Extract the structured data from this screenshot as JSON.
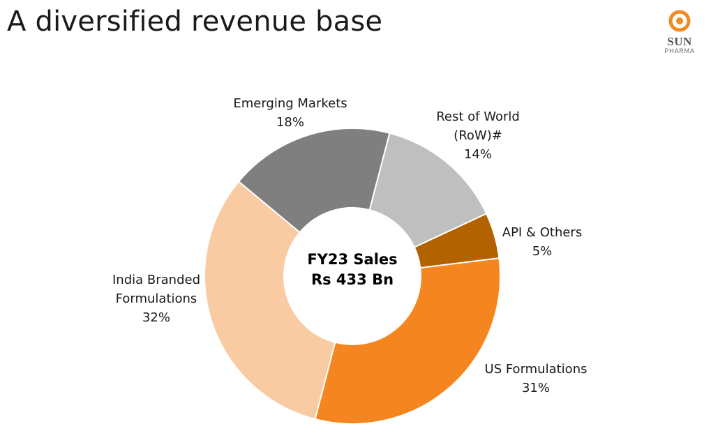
{
  "slide": {
    "title": "A diversified revenue base"
  },
  "logo": {
    "name": "SUN",
    "sub": "PHARMA",
    "colors": {
      "orange": "#F08A24",
      "text": "#555555"
    }
  },
  "chart_data": {
    "type": "pie",
    "variant": "donut",
    "title": "FY23 Sales",
    "subtitle": "Rs 433 Bn",
    "unit": "%",
    "legend": "none (direct labels)",
    "slices": [
      {
        "label_lines": [
          "US Formulations"
        ],
        "pct_label": "31%",
        "value": 31,
        "color": "#F5851F"
      },
      {
        "label_lines": [
          "India Branded",
          "Formulations"
        ],
        "pct_label": "32%",
        "value": 32,
        "color": "#F9CBA3"
      },
      {
        "label_lines": [
          "Emerging Markets"
        ],
        "pct_label": "18%",
        "value": 18,
        "color": "#7F7F7F"
      },
      {
        "label_lines": [
          "Rest of World",
          "(RoW)#"
        ],
        "pct_label": "14%",
        "value": 14,
        "color": "#BFBFBF"
      },
      {
        "label_lines": [
          "API & Others"
        ],
        "pct_label": "5%",
        "value": 5,
        "color": "#B36200"
      }
    ]
  }
}
